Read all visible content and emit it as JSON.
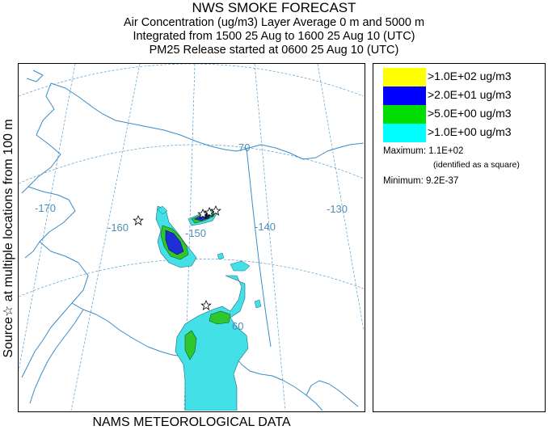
{
  "header": {
    "title": "NWS SMOKE FORECAST",
    "line2": "Air Concentration (ug/m3) Layer Average    0 m and  5000 m",
    "line3": "Integrated from 1500 25 Aug to 1600 25 Aug 10 (UTC)",
    "line4": "PM25 Release started at 0600 25 Aug 10 (UTC)"
  },
  "side_label": "Source☆  at multiple locations   from  100 m",
  "footer": "NAMS METEOROLOGICAL DATA",
  "legend": {
    "items": [
      {
        "label": ">1.0E+02 ug/m3",
        "color": "#ffff00"
      },
      {
        "label": ">2.0E+01 ug/m3",
        "color": "#0000ff"
      },
      {
        "label": ">5.0E+00 ug/m3",
        "color": "#00dd00"
      },
      {
        "label": ">1.0E+00 ug/m3",
        "color": "#00ffff"
      }
    ],
    "maximum": "Maximum: 1.1E+02",
    "maximum_note": "(identified as a square)",
    "minimum": "Minimum: 9.2E-37"
  },
  "map": {
    "graticule_labels": {
      "lon_170": "-170",
      "lon_160": "-160",
      "lon_150": "-150",
      "lon_140": "-140",
      "lon_130": "-130",
      "lat_70": "70",
      "lat_60": "60"
    },
    "colors": {
      "coast": "#3a8cc4",
      "graticule": "#5a9ccc",
      "plume_cyan": "#44e0e8",
      "plume_green": "#2ec82e",
      "plume_blue": "#1f2fd8"
    }
  }
}
